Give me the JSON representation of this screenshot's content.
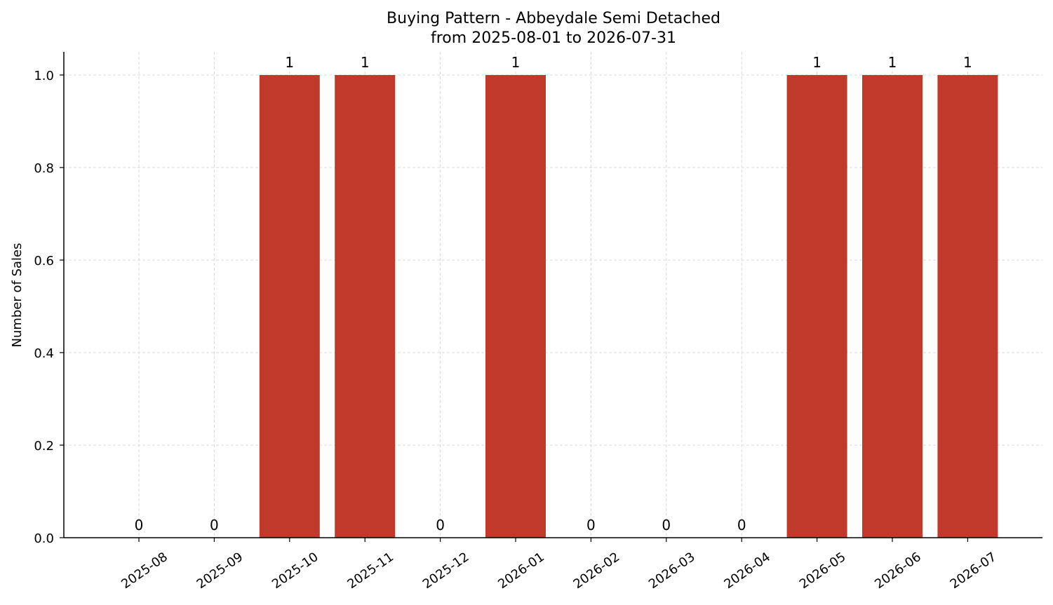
{
  "chart_data": {
    "type": "bar",
    "title": "Buying Pattern - Abbeydale Semi Detached",
    "subtitle": "from 2025-08-01 to 2026-07-31",
    "xlabel": "",
    "ylabel": "Number of Sales",
    "categories": [
      "2025-08",
      "2025-09",
      "2025-10",
      "2025-11",
      "2025-12",
      "2026-01",
      "2026-02",
      "2026-03",
      "2026-04",
      "2026-05",
      "2026-06",
      "2026-07"
    ],
    "values": [
      0,
      0,
      1,
      1,
      0,
      1,
      0,
      0,
      0,
      1,
      1,
      1
    ],
    "data_labels": [
      "0",
      "0",
      "1",
      "1",
      "0",
      "1",
      "0",
      "0",
      "0",
      "1",
      "1",
      "1"
    ],
    "ylim": [
      0,
      1.05
    ],
    "yticks": [
      0.0,
      0.2,
      0.4,
      0.6,
      0.8,
      1.0
    ],
    "ytick_labels": [
      "0.0",
      "0.2",
      "0.4",
      "0.6",
      "0.8",
      "1.0"
    ],
    "grid": true,
    "legend": false,
    "bar_color": "#c0392b",
    "grid_color": "#d9d9d9"
  }
}
